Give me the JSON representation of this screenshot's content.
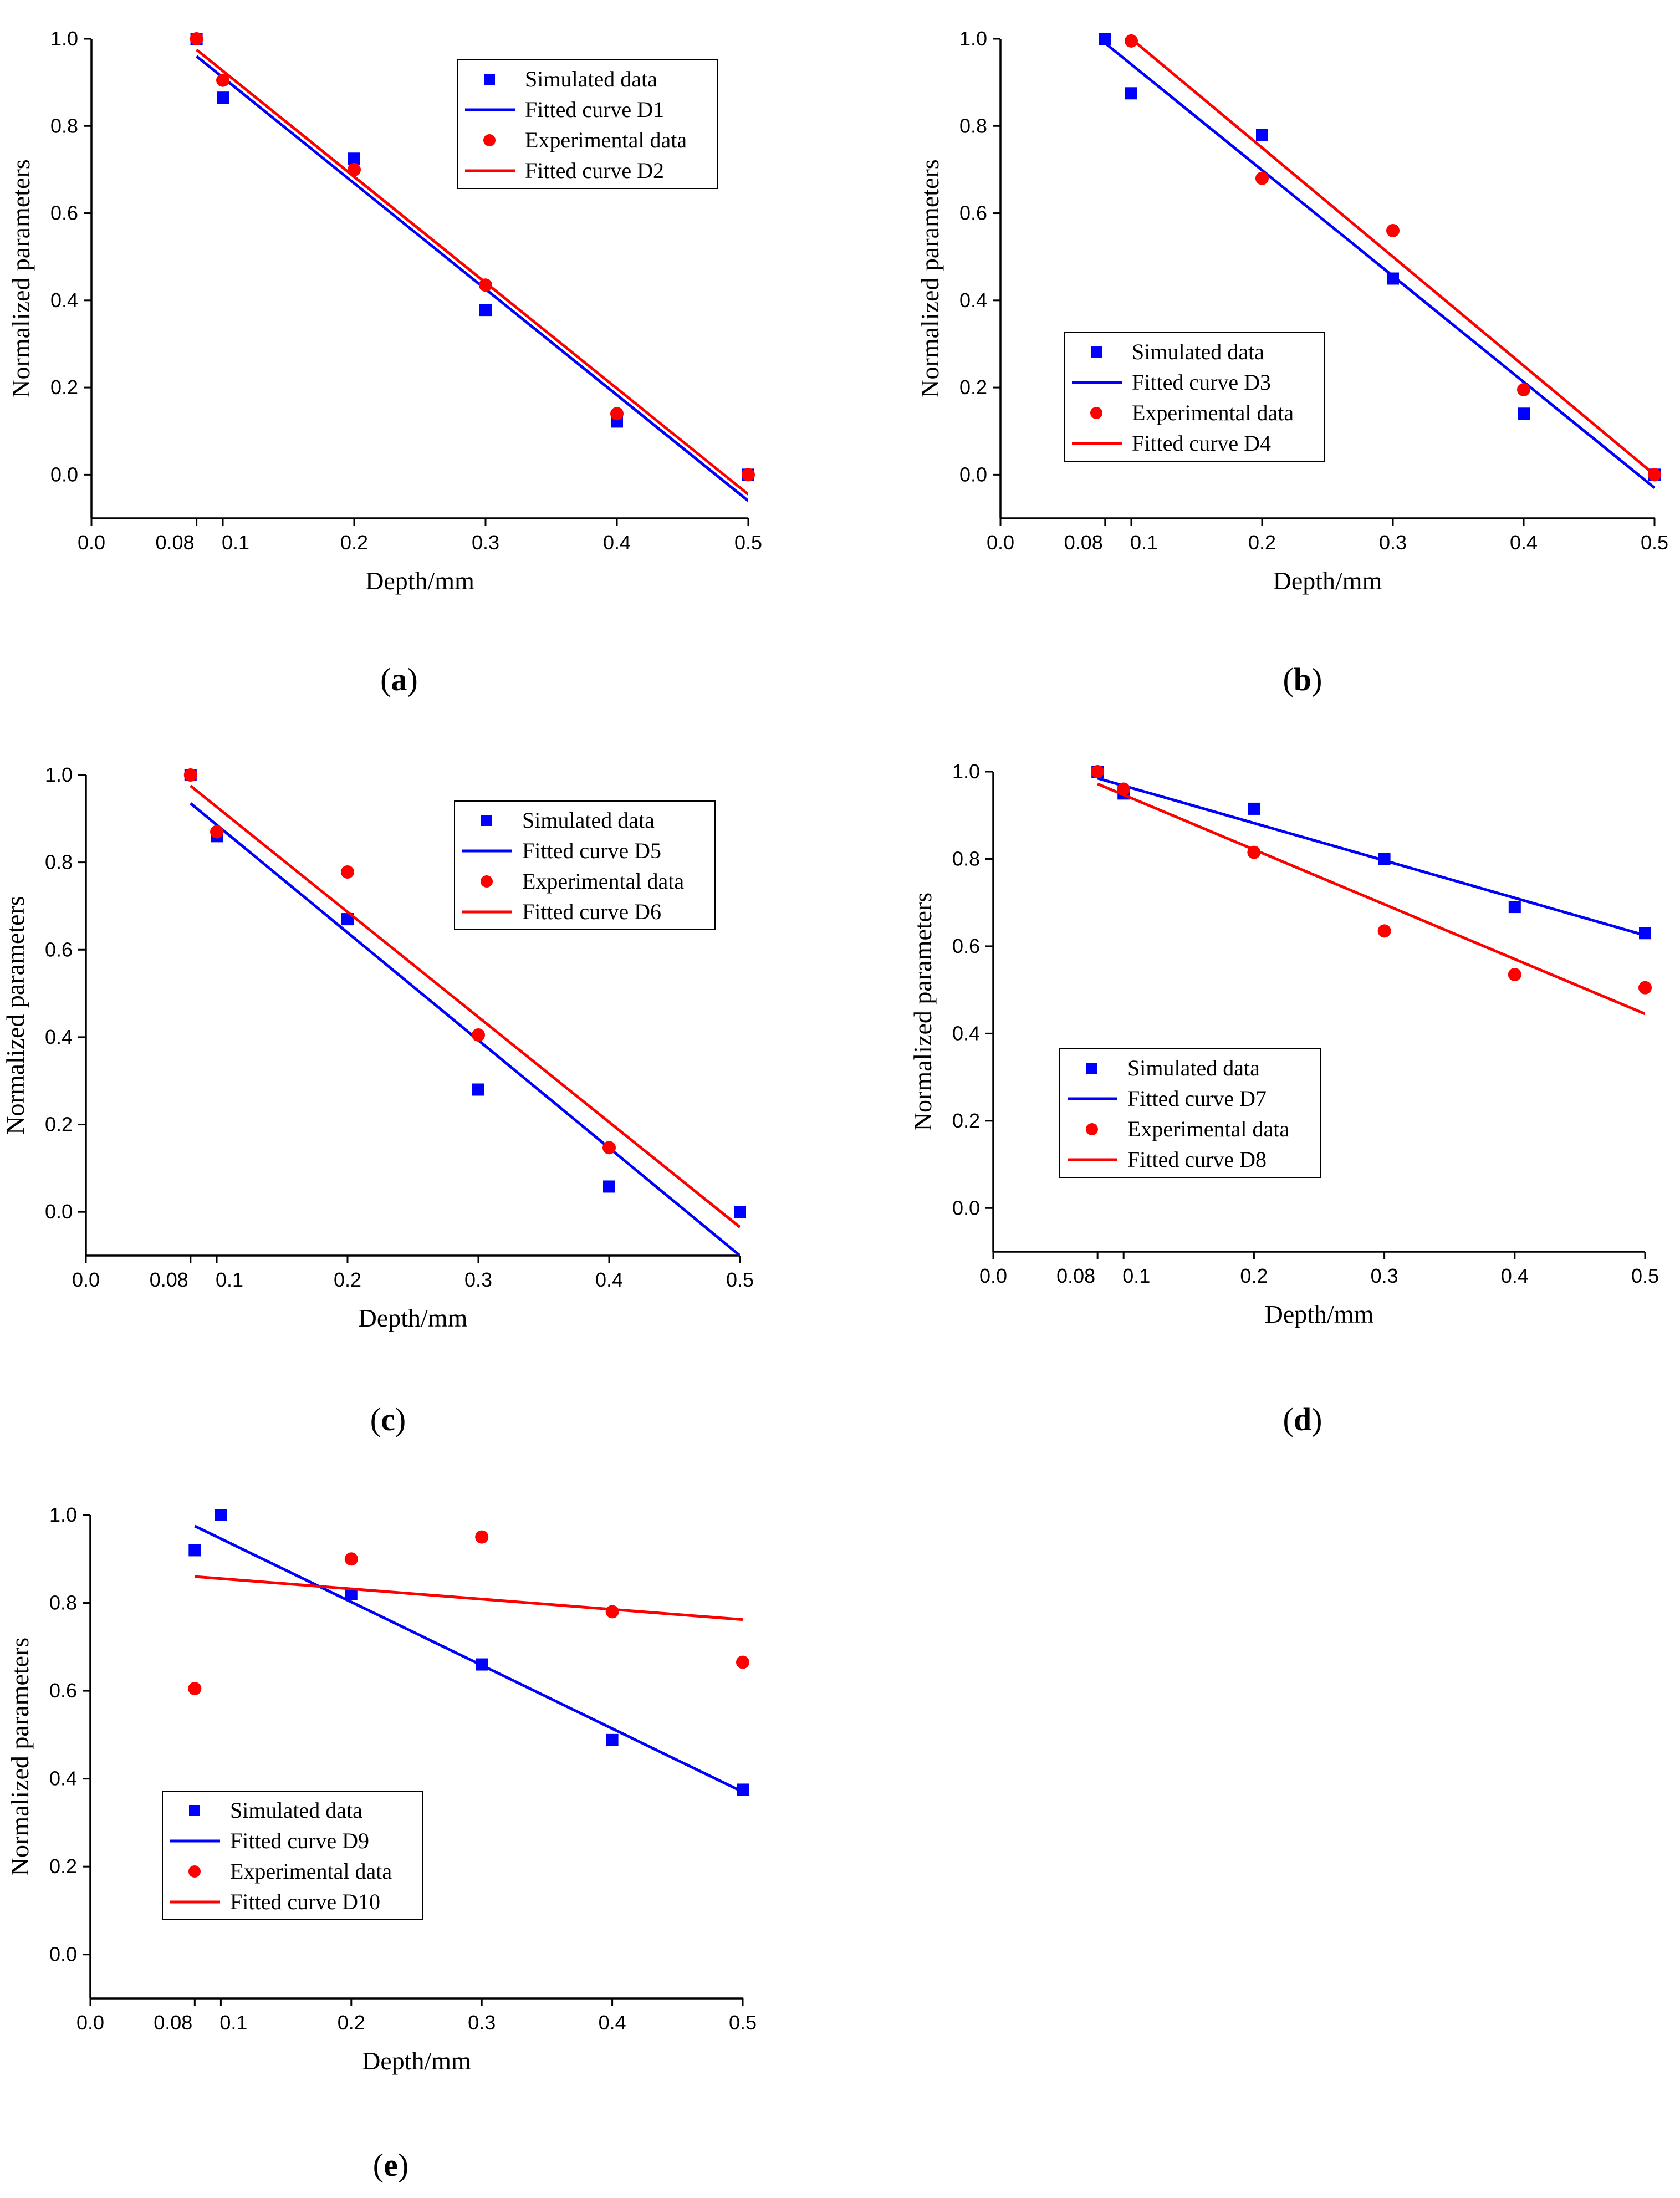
{
  "chart_data": [
    {
      "id": "a",
      "caption": "a",
      "type": "scatter",
      "xlabel": "Depth/mm",
      "ylabel": "Normalized parameters",
      "xlim": [
        0,
        0.5
      ],
      "ylim": [
        -0.1,
        1.0
      ],
      "xticks": [
        "0.0",
        "0.08",
        "0.1",
        "0.2",
        "0.3",
        "0.4",
        "0.5"
      ],
      "yticks": [
        "0.0",
        "0.2",
        "0.4",
        "0.6",
        "0.8",
        "1.0"
      ],
      "legend_position": "top-right",
      "colors": {
        "sim": "#0000ff",
        "exp": "#ff0000"
      },
      "series": [
        {
          "name": "Simulated data",
          "kind": "square",
          "color": "#0000ff",
          "x": [
            0.08,
            0.1,
            0.2,
            0.3,
            0.4,
            0.5
          ],
          "y": [
            1.0,
            0.865,
            0.725,
            0.378,
            0.122,
            0.0
          ]
        },
        {
          "name": "Fitted curve D1",
          "kind": "line",
          "color": "#0000ff",
          "x": [
            0.08,
            0.5
          ],
          "y": [
            0.96,
            -0.06
          ]
        },
        {
          "name": "Experimental data",
          "kind": "circle",
          "color": "#ff0000",
          "x": [
            0.08,
            0.1,
            0.2,
            0.3,
            0.4,
            0.5
          ],
          "y": [
            1.0,
            0.905,
            0.7,
            0.435,
            0.14,
            0.0
          ]
        },
        {
          "name": "Fitted curve D2",
          "kind": "line",
          "color": "#ff0000",
          "x": [
            0.08,
            0.5
          ],
          "y": [
            0.975,
            -0.045
          ]
        }
      ]
    },
    {
      "id": "b",
      "caption": "b",
      "type": "scatter",
      "xlabel": "Depth/mm",
      "ylabel": "Normalized parameters",
      "xlim": [
        0,
        0.5
      ],
      "ylim": [
        -0.1,
        1.0
      ],
      "xticks": [
        "0.0",
        "0.08",
        "0.1",
        "0.2",
        "0.3",
        "0.4",
        "0.5"
      ],
      "yticks": [
        "0.0",
        "0.2",
        "0.4",
        "0.6",
        "0.8",
        "1.0"
      ],
      "legend_position": "bottom-left",
      "series": [
        {
          "name": "Simulated data",
          "kind": "square",
          "color": "#0000ff",
          "x": [
            0.08,
            0.1,
            0.2,
            0.3,
            0.4,
            0.5
          ],
          "y": [
            1.0,
            0.875,
            0.78,
            0.45,
            0.14,
            0.0
          ]
        },
        {
          "name": "Fitted curve D3",
          "kind": "line",
          "color": "#0000ff",
          "x": [
            0.08,
            0.5
          ],
          "y": [
            0.99,
            -0.03
          ]
        },
        {
          "name": "Experimental data",
          "kind": "circle",
          "color": "#ff0000",
          "x": [
            0.1,
            0.2,
            0.3,
            0.4,
            0.5
          ],
          "y": [
            0.995,
            0.68,
            0.56,
            0.195,
            0.0
          ]
        },
        {
          "name": "Fitted curve D4",
          "kind": "line",
          "color": "#ff0000",
          "x": [
            0.1,
            0.5
          ],
          "y": [
            1.0,
            0.0
          ]
        }
      ]
    },
    {
      "id": "c",
      "caption": "c",
      "type": "scatter",
      "xlabel": "Depth/mm",
      "ylabel": "Normalized parameters",
      "xlim": [
        0,
        0.5
      ],
      "ylim": [
        -0.1,
        1.0
      ],
      "xticks": [
        "0.0",
        "0.08",
        "0.1",
        "0.2",
        "0.3",
        "0.4",
        "0.5"
      ],
      "yticks": [
        "0.0",
        "0.2",
        "0.4",
        "0.6",
        "0.8",
        "1.0"
      ],
      "legend_position": "top-right",
      "series": [
        {
          "name": "Simulated data",
          "kind": "square",
          "color": "#0000ff",
          "x": [
            0.08,
            0.1,
            0.2,
            0.3,
            0.4,
            0.5
          ],
          "y": [
            1.0,
            0.86,
            0.67,
            0.28,
            0.058,
            0.0
          ]
        },
        {
          "name": "Fitted curve D5",
          "kind": "line",
          "color": "#0000ff",
          "x": [
            0.08,
            0.5
          ],
          "y": [
            0.935,
            -0.1
          ]
        },
        {
          "name": "Experimental data",
          "kind": "circle",
          "color": "#ff0000",
          "x": [
            0.08,
            0.1,
            0.2,
            0.3,
            0.4
          ],
          "y": [
            1.0,
            0.87,
            0.778,
            0.405,
            0.147
          ]
        },
        {
          "name": "Fitted curve D6",
          "kind": "line",
          "color": "#ff0000",
          "x": [
            0.08,
            0.5
          ],
          "y": [
            0.975,
            -0.035
          ]
        }
      ]
    },
    {
      "id": "d",
      "caption": "d",
      "type": "scatter",
      "xlabel": "Depth/mm",
      "ylabel": "Normalized parameters",
      "xlim": [
        0,
        0.5
      ],
      "ylim": [
        -0.1,
        1.0
      ],
      "xticks": [
        "0.0",
        "0.08",
        "0.1",
        "0.2",
        "0.3",
        "0.4",
        "0.5"
      ],
      "yticks": [
        "0.0",
        "0.2",
        "0.4",
        "0.6",
        "0.8",
        "1.0"
      ],
      "legend_position": "bottom-left",
      "series": [
        {
          "name": "Simulated data",
          "kind": "square",
          "color": "#0000ff",
          "x": [
            0.08,
            0.1,
            0.2,
            0.3,
            0.4,
            0.5
          ],
          "y": [
            1.0,
            0.95,
            0.915,
            0.8,
            0.69,
            0.63
          ]
        },
        {
          "name": "Fitted curve D7",
          "kind": "line",
          "color": "#0000ff",
          "x": [
            0.08,
            0.5
          ],
          "y": [
            0.985,
            0.625
          ]
        },
        {
          "name": "Experimental data",
          "kind": "circle",
          "color": "#ff0000",
          "x": [
            0.08,
            0.1,
            0.2,
            0.3,
            0.4,
            0.5
          ],
          "y": [
            1.0,
            0.96,
            0.815,
            0.635,
            0.535,
            0.505
          ]
        },
        {
          "name": "Fitted curve D8",
          "kind": "line",
          "color": "#ff0000",
          "x": [
            0.08,
            0.5
          ],
          "y": [
            0.972,
            0.445
          ]
        }
      ]
    },
    {
      "id": "e",
      "caption": "e",
      "type": "scatter",
      "xlabel": "Depth/mm",
      "ylabel": "Normalized parameters",
      "xlim": [
        0,
        0.5
      ],
      "ylim": [
        -0.1,
        1.0
      ],
      "xticks": [
        "0.0",
        "0.08",
        "0.1",
        "0.2",
        "0.3",
        "0.4",
        "0.5"
      ],
      "yticks": [
        "0.0",
        "0.2",
        "0.4",
        "0.6",
        "0.8",
        "1.0"
      ],
      "legend_position": "bottom-left",
      "series": [
        {
          "name": "Simulated data",
          "kind": "square",
          "color": "#0000ff",
          "x": [
            0.08,
            0.1,
            0.2,
            0.3,
            0.4,
            0.5
          ],
          "y": [
            0.92,
            1.0,
            0.82,
            0.66,
            0.488,
            0.375
          ]
        },
        {
          "name": "Fitted curve D9",
          "kind": "line",
          "color": "#0000ff",
          "x": [
            0.08,
            0.5
          ],
          "y": [
            0.975,
            0.37
          ]
        },
        {
          "name": "Experimental data",
          "kind": "circle",
          "color": "#ff0000",
          "x": [
            0.08,
            0.2,
            0.3,
            0.4,
            0.5
          ],
          "y": [
            0.605,
            0.9,
            0.95,
            0.78,
            0.665
          ]
        },
        {
          "name": "Fitted curve D10",
          "kind": "line",
          "color": "#ff0000",
          "x": [
            0.08,
            0.5
          ],
          "y": [
            0.86,
            0.762
          ]
        }
      ]
    }
  ]
}
